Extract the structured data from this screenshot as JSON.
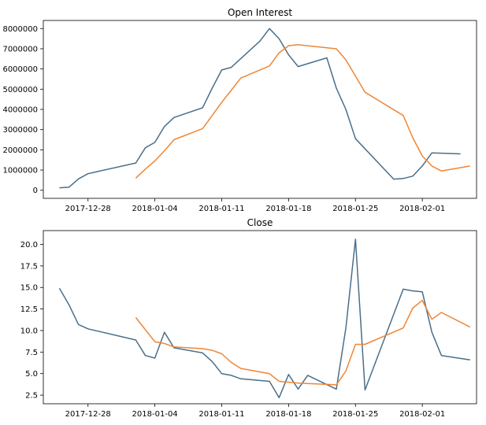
{
  "chart_data": [
    {
      "type": "line",
      "title": "Open Interest",
      "xlabel": "",
      "ylabel": "",
      "x_ticks": [
        "2017-12-28",
        "2018-01-04",
        "2018-01-11",
        "2018-01-18",
        "2018-01-25",
        "2018-02-01"
      ],
      "y_ticks": [
        "0",
        "1000000",
        "2000000",
        "3000000",
        "4000000",
        "5000000",
        "6000000",
        "7000000",
        "8000000"
      ],
      "xlim": [
        "2017-12-25",
        "2018-02-05"
      ],
      "ylim": [
        -400000,
        8400000
      ],
      "grid": false,
      "series": [
        {
          "color": "#4a6f8a",
          "points": [
            [
              "2017-12-25",
              120000
            ],
            [
              "2017-12-26",
              150000
            ],
            [
              "2017-12-27",
              560000
            ],
            [
              "2017-12-28",
              820000
            ],
            [
              "2018-01-02",
              1350000
            ],
            [
              "2018-01-03",
              2100000
            ],
            [
              "2018-01-04",
              2370000
            ],
            [
              "2018-01-05",
              3150000
            ],
            [
              "2018-01-06",
              3600000
            ],
            [
              "2018-01-09",
              4080000
            ],
            [
              "2018-01-10",
              5050000
            ],
            [
              "2018-01-11",
              5950000
            ],
            [
              "2018-01-12",
              6080000
            ],
            [
              "2018-01-15",
              7380000
            ],
            [
              "2018-01-16",
              8000000
            ],
            [
              "2018-01-17",
              7500000
            ],
            [
              "2018-01-18",
              6700000
            ],
            [
              "2018-01-19",
              6120000
            ],
            [
              "2018-01-22",
              6550000
            ],
            [
              "2018-01-23",
              5050000
            ],
            [
              "2018-01-24",
              4000000
            ],
            [
              "2018-01-25",
              2550000
            ],
            [
              "2018-01-29",
              550000
            ],
            [
              "2018-01-30",
              580000
            ],
            [
              "2018-01-31",
              700000
            ],
            [
              "2018-02-01",
              1200000
            ],
            [
              "2018-02-02",
              1850000
            ],
            [
              "2018-02-05",
              1800000
            ]
          ]
        },
        {
          "color": "#ef8636",
          "points": [
            [
              "2018-01-02",
              600000
            ],
            [
              "2018-01-03",
              1050000
            ],
            [
              "2018-01-04",
              1450000
            ],
            [
              "2018-01-05",
              1950000
            ],
            [
              "2018-01-06",
              2500000
            ],
            [
              "2018-01-09",
              3050000
            ],
            [
              "2018-01-10",
              3700000
            ],
            [
              "2018-01-11",
              4350000
            ],
            [
              "2018-01-12",
              4950000
            ],
            [
              "2018-01-13",
              5550000
            ],
            [
              "2018-01-16",
              6150000
            ],
            [
              "2018-01-17",
              6800000
            ],
            [
              "2018-01-18",
              7150000
            ],
            [
              "2018-01-19",
              7200000
            ],
            [
              "2018-01-23",
              7000000
            ],
            [
              "2018-01-24",
              6450000
            ],
            [
              "2018-01-25",
              5650000
            ],
            [
              "2018-01-26",
              4850000
            ],
            [
              "2018-01-30",
              3700000
            ],
            [
              "2018-01-31",
              2600000
            ],
            [
              "2018-02-01",
              1700000
            ],
            [
              "2018-02-02",
              1200000
            ],
            [
              "2018-02-03",
              950000
            ],
            [
              "2018-02-06",
              1200000
            ]
          ]
        }
      ]
    },
    {
      "type": "line",
      "title": "Close",
      "xlabel": "",
      "ylabel": "",
      "x_ticks": [
        "2017-12-28",
        "2018-01-04",
        "2018-01-11",
        "2018-01-18",
        "2018-01-25",
        "2018-02-01"
      ],
      "y_ticks": [
        "2.5",
        "5.0",
        "7.5",
        "10.0",
        "12.5",
        "15.0",
        "17.5",
        "20.0"
      ],
      "xlim": [
        "2017-12-25",
        "2018-02-05"
      ],
      "ylim": [
        1.5,
        21.6
      ],
      "grid": false,
      "series": [
        {
          "color": "#4a6f8a",
          "points": [
            [
              "2017-12-25",
              14.9
            ],
            [
              "2017-12-26",
              13.0
            ],
            [
              "2017-12-27",
              10.7
            ],
            [
              "2017-12-28",
              10.2
            ],
            [
              "2018-01-02",
              8.9
            ],
            [
              "2018-01-03",
              7.1
            ],
            [
              "2018-01-04",
              6.8
            ],
            [
              "2018-01-05",
              9.8
            ],
            [
              "2018-01-06",
              8.0
            ],
            [
              "2018-01-09",
              7.4
            ],
            [
              "2018-01-10",
              6.4
            ],
            [
              "2018-01-11",
              5.0
            ],
            [
              "2018-01-12",
              4.8
            ],
            [
              "2018-01-13",
              4.4
            ],
            [
              "2018-01-16",
              4.1
            ],
            [
              "2018-01-17",
              2.2
            ],
            [
              "2018-01-18",
              4.9
            ],
            [
              "2018-01-19",
              3.2
            ],
            [
              "2018-01-20",
              4.8
            ],
            [
              "2018-01-23",
              3.2
            ],
            [
              "2018-01-24",
              10.3
            ],
            [
              "2018-01-25",
              20.6
            ],
            [
              "2018-01-26",
              3.1
            ],
            [
              "2018-01-30",
              14.8
            ],
            [
              "2018-01-31",
              14.6
            ],
            [
              "2018-02-01",
              14.5
            ],
            [
              "2018-02-02",
              9.8
            ],
            [
              "2018-02-03",
              7.1
            ],
            [
              "2018-02-06",
              6.6
            ]
          ]
        },
        {
          "color": "#ef8636",
          "points": [
            [
              "2018-01-02",
              11.5
            ],
            [
              "2018-01-03",
              10.1
            ],
            [
              "2018-01-04",
              8.7
            ],
            [
              "2018-01-05",
              8.5
            ],
            [
              "2018-01-06",
              8.1
            ],
            [
              "2018-01-09",
              7.9
            ],
            [
              "2018-01-10",
              7.7
            ],
            [
              "2018-01-11",
              7.3
            ],
            [
              "2018-01-12",
              6.3
            ],
            [
              "2018-01-13",
              5.6
            ],
            [
              "2018-01-16",
              5.0
            ],
            [
              "2018-01-17",
              4.1
            ],
            [
              "2018-01-18",
              4.0
            ],
            [
              "2018-01-19",
              3.9
            ],
            [
              "2018-01-23",
              3.7
            ],
            [
              "2018-01-24",
              5.3
            ],
            [
              "2018-01-25",
              8.4
            ],
            [
              "2018-01-26",
              8.4
            ],
            [
              "2018-01-30",
              10.3
            ],
            [
              "2018-01-31",
              12.6
            ],
            [
              "2018-02-01",
              13.5
            ],
            [
              "2018-02-02",
              11.3
            ],
            [
              "2018-02-03",
              12.1
            ],
            [
              "2018-02-06",
              10.4
            ]
          ]
        }
      ]
    }
  ]
}
